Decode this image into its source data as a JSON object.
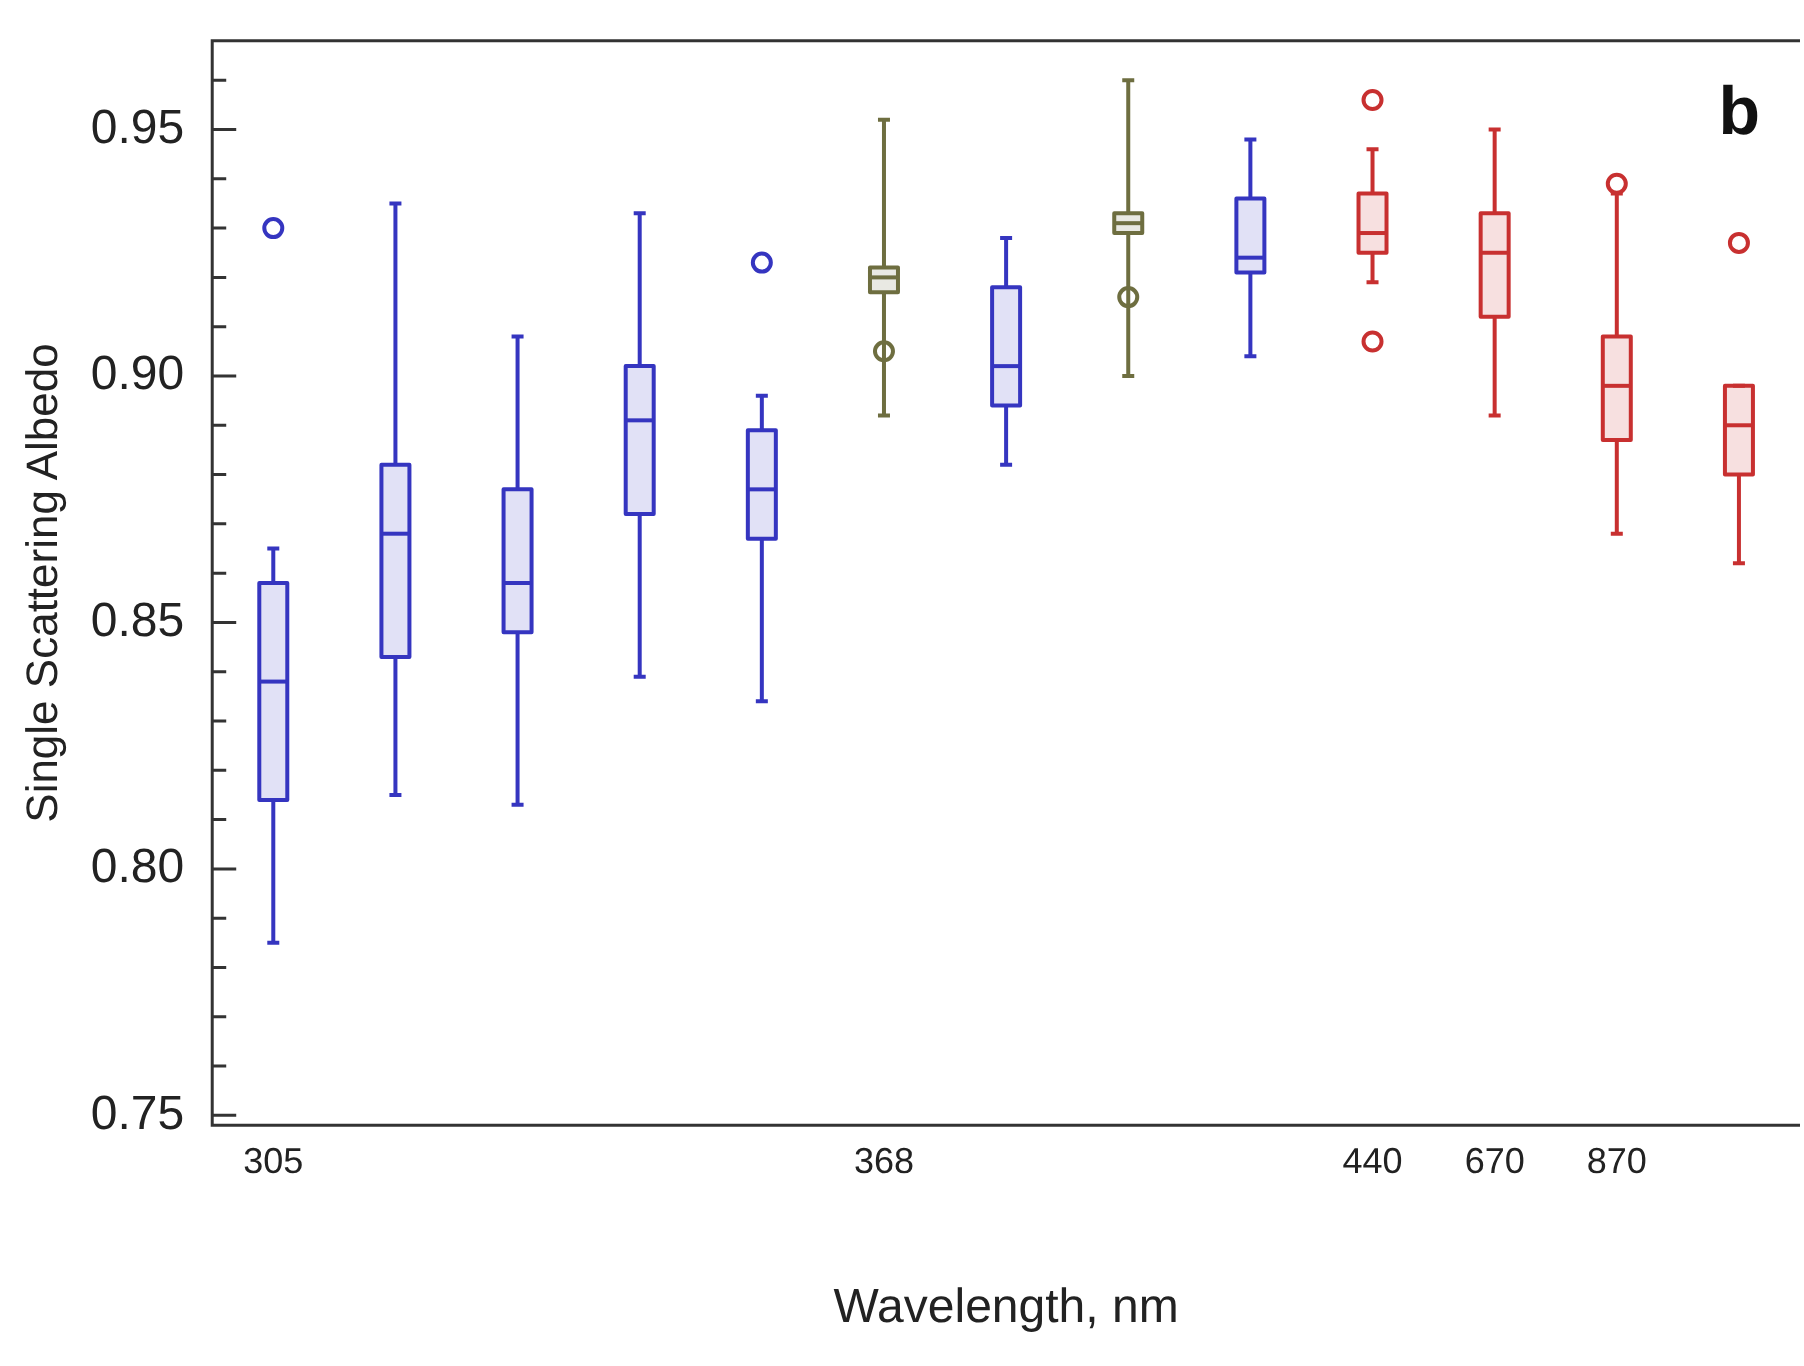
{
  "chart_data": {
    "type": "box",
    "xlabel": "Wavelength, nm",
    "ylabel": "Single Scattering Albedo",
    "annotations": [
      "b"
    ],
    "categories": [
      "305",
      null,
      null,
      null,
      null,
      "368",
      null,
      null,
      null,
      "440",
      "670",
      "870",
      null
    ],
    "series": [
      {
        "color": "#3535c0",
        "boxes": [
          {
            "low": 0.785,
            "q1": 0.814,
            "median": 0.838,
            "q3": 0.858,
            "high": 0.865,
            "outliers": [
              0.93
            ]
          },
          {
            "low": 0.815,
            "q1": 0.843,
            "median": 0.868,
            "q3": 0.882,
            "high": 0.935
          },
          {
            "low": 0.813,
            "q1": 0.848,
            "median": 0.858,
            "q3": 0.877,
            "high": 0.908
          },
          {
            "low": 0.839,
            "q1": 0.872,
            "median": 0.891,
            "q3": 0.902,
            "high": 0.933
          },
          {
            "low": 0.834,
            "q1": 0.867,
            "median": 0.877,
            "q3": 0.889,
            "high": 0.896,
            "outliers": [
              0.923
            ]
          },
          null,
          {
            "low": 0.882,
            "q1": 0.894,
            "median": 0.902,
            "q3": 0.918,
            "high": 0.928
          },
          null,
          {
            "low": 0.904,
            "q1": 0.921,
            "median": 0.924,
            "q3": 0.936,
            "high": 0.948
          },
          null,
          null,
          null,
          null
        ]
      },
      {
        "color": "#6e6e40",
        "boxes": [
          null,
          null,
          null,
          null,
          null,
          {
            "low": 0.892,
            "q1": 0.917,
            "median": 0.92,
            "q3": 0.922,
            "high": 0.952,
            "mean": 0.905
          },
          null,
          {
            "low": 0.9,
            "q1": 0.929,
            "median": 0.931,
            "q3": 0.933,
            "high": 0.96,
            "mean": 0.916
          },
          null,
          null,
          null,
          null,
          null
        ]
      },
      {
        "color": "#c83030",
        "boxes": [
          null,
          null,
          null,
          null,
          null,
          null,
          null,
          null,
          null,
          {
            "low": 0.919,
            "q1": 0.925,
            "median": 0.929,
            "q3": 0.937,
            "high": 0.946,
            "outliers": [
              0.956,
              0.907
            ]
          },
          {
            "low": 0.892,
            "q1": 0.912,
            "median": 0.925,
            "q3": 0.933,
            "high": 0.95
          },
          {
            "low": 0.868,
            "q1": 0.887,
            "median": 0.898,
            "q3": 0.908,
            "high": 0.937,
            "outliers": [
              0.939
            ]
          },
          {
            "low": 0.862,
            "q1": 0.88,
            "median": 0.89,
            "q3": 0.898,
            "high": 0.898,
            "outliers": [
              0.927
            ]
          }
        ]
      }
    ],
    "ylim": [
      0.748,
      0.968
    ],
    "yticks": [
      {
        "value": 0.75,
        "label": "0.75"
      },
      {
        "value": 0.76,
        "label": null
      },
      {
        "value": 0.77,
        "label": null
      },
      {
        "value": 0.78,
        "label": null
      },
      {
        "value": 0.79,
        "label": null
      },
      {
        "value": 0.8,
        "label": "0.80"
      },
      {
        "value": 0.81,
        "label": null
      },
      {
        "value": 0.82,
        "label": null
      },
      {
        "value": 0.83,
        "label": null
      },
      {
        "value": 0.84,
        "label": null
      },
      {
        "value": 0.85,
        "label": "0.85"
      },
      {
        "value": 0.86,
        "label": null
      },
      {
        "value": 0.87,
        "label": null
      },
      {
        "value": 0.88,
        "label": null
      },
      {
        "value": 0.89,
        "label": null
      },
      {
        "value": 0.9,
        "label": "0.90"
      },
      {
        "value": 0.91,
        "label": null
      },
      {
        "value": 0.92,
        "label": null
      },
      {
        "value": 0.93,
        "label": null
      },
      {
        "value": 0.94,
        "label": null
      },
      {
        "value": 0.95,
        "label": "0.95"
      },
      {
        "value": 0.96,
        "label": null
      }
    ],
    "grid": false,
    "legend": false
  }
}
